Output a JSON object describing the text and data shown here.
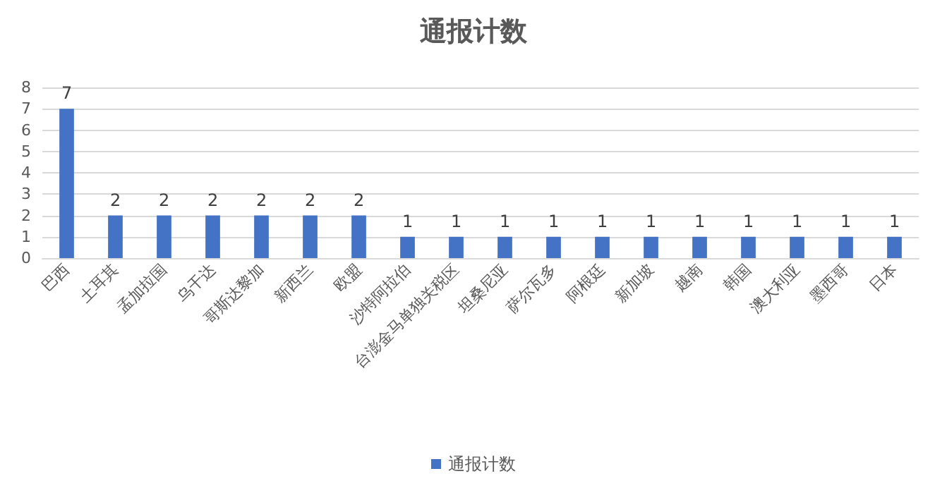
{
  "chart_data": {
    "type": "bar",
    "title": "通报计数",
    "categories": [
      "巴西",
      "土耳其",
      "孟加拉国",
      "乌干达",
      "哥斯达黎加",
      "新西兰",
      "欧盟",
      "沙特阿拉伯",
      "台澎金马单独关税区",
      "坦桑尼亚",
      "萨尔瓦多",
      "阿根廷",
      "新加坡",
      "越南",
      "韩国",
      "澳大利亚",
      "墨西哥",
      "日本"
    ],
    "series": [
      {
        "name": "通报计数",
        "color": "#4472c4",
        "values": [
          7,
          2,
          2,
          2,
          2,
          2,
          2,
          1,
          1,
          1,
          1,
          1,
          1,
          1,
          1,
          1,
          1,
          1
        ]
      }
    ],
    "ylim": [
      0,
      8
    ],
    "yticks": [
      0,
      1,
      2,
      3,
      4,
      5,
      6,
      7,
      8
    ],
    "grid": "y",
    "legend": "bottom",
    "data_labels": true
  }
}
